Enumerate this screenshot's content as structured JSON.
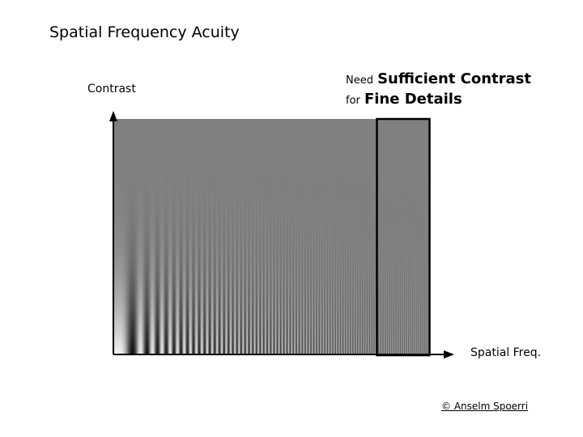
{
  "title": "Spatial Frequency Acuity",
  "y_axis_label": "Contrast",
  "x_axis_label": "Spatial Freq.",
  "note": {
    "line1_small": "Need",
    "line1_big": "Sufficient Contrast",
    "line2_small": "for",
    "line2_big": "Fine Details"
  },
  "credit": "© Anselm Spoerri",
  "colors": {
    "background": "#808080",
    "dark": "#1a1a1a",
    "light": "#e6e6e6",
    "axis": "#000000"
  }
}
